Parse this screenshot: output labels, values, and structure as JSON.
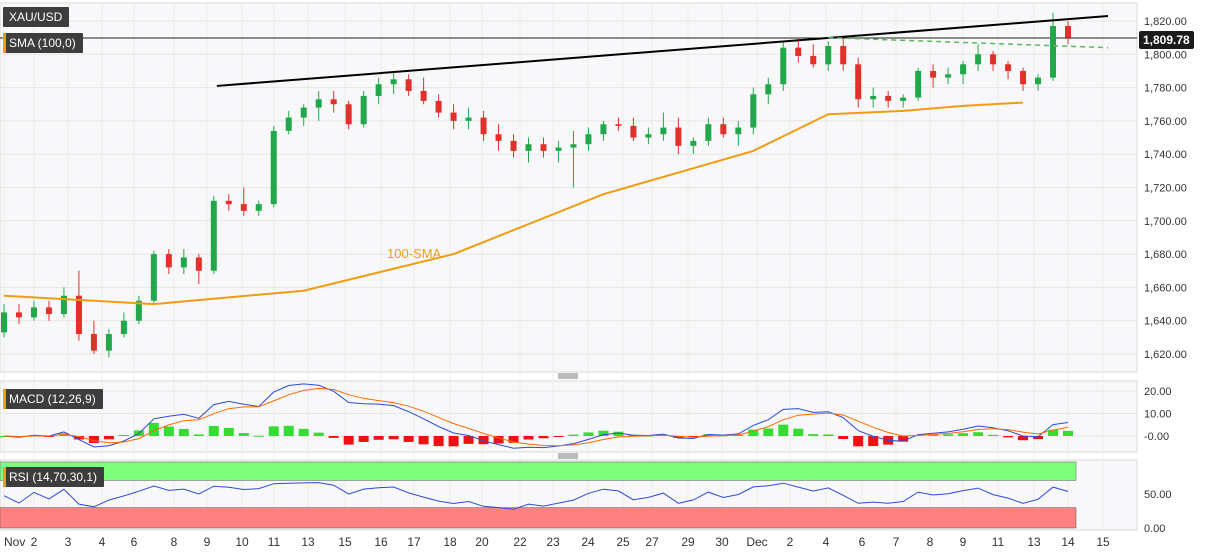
{
  "header": {
    "symbol": "XAU/USD",
    "indicator": "SMA (100,0)",
    "last_price": "1,809.78"
  },
  "colors": {
    "up": "#22a84a",
    "down": "#e0312b",
    "sma": "#f39c12",
    "trend": "#000000",
    "dashed": "#5cb85c",
    "macd": "#2e4bd4",
    "signal": "#ff6a00",
    "hist_pos": "#33dd33",
    "hist_neg": "#ee1111",
    "rsi_line": "#2e4bd4",
    "rsi_upper": "#7dff7d",
    "rsi_lower": "#ff8080"
  },
  "chart_data": [
    {
      "type": "candlestick",
      "series_name": "XAU/USD",
      "annotation": "100-SMA",
      "y_ticks": [
        "1,620.00",
        "1,640.00",
        "1,660.00",
        "1,680.00",
        "1,700.00",
        "1,720.00",
        "1,740.00",
        "1,760.00",
        "1,780.00",
        "1,800.00",
        "1,820.00"
      ],
      "ylim": [
        1610,
        1830
      ],
      "x_ticks": [
        "Nov",
        "2",
        "3",
        "4",
        "6",
        "8",
        "9",
        "10",
        "11",
        "13",
        "15",
        "16",
        "17",
        "18",
        "20",
        "22",
        "23",
        "24",
        "25",
        "27",
        "29",
        "30",
        "Dec",
        "2",
        "4",
        "6",
        "7",
        "8",
        "9",
        "11",
        "13",
        "14",
        "15"
      ],
      "candles": [
        [
          1633,
          1650,
          1630,
          1645
        ],
        [
          1645,
          1650,
          1638,
          1642
        ],
        [
          1642,
          1652,
          1640,
          1648
        ],
        [
          1648,
          1652,
          1640,
          1644
        ],
        [
          1644,
          1660,
          1642,
          1655
        ],
        [
          1655,
          1670,
          1628,
          1632
        ],
        [
          1632,
          1640,
          1620,
          1622
        ],
        [
          1622,
          1635,
          1618,
          1632
        ],
        [
          1632,
          1645,
          1630,
          1640
        ],
        [
          1640,
          1655,
          1638,
          1652
        ],
        [
          1652,
          1682,
          1650,
          1680
        ],
        [
          1680,
          1683,
          1668,
          1672
        ],
        [
          1672,
          1683,
          1668,
          1678
        ],
        [
          1678,
          1680,
          1662,
          1670
        ],
        [
          1670,
          1715,
          1668,
          1712
        ],
        [
          1712,
          1716,
          1706,
          1710
        ],
        [
          1710,
          1720,
          1703,
          1706
        ],
        [
          1706,
          1712,
          1703,
          1710
        ],
        [
          1710,
          1757,
          1708,
          1754
        ],
        [
          1754,
          1766,
          1752,
          1762
        ],
        [
          1762,
          1770,
          1757,
          1768
        ],
        [
          1768,
          1778,
          1760,
          1773
        ],
        [
          1773,
          1778,
          1765,
          1770
        ],
        [
          1770,
          1772,
          1755,
          1758
        ],
        [
          1758,
          1778,
          1756,
          1775
        ],
        [
          1775,
          1786,
          1770,
          1782
        ],
        [
          1782,
          1790,
          1776,
          1785
        ],
        [
          1785,
          1788,
          1775,
          1778
        ],
        [
          1778,
          1786,
          1770,
          1772
        ],
        [
          1772,
          1776,
          1762,
          1765
        ],
        [
          1765,
          1770,
          1755,
          1760
        ],
        [
          1760,
          1768,
          1755,
          1762
        ],
        [
          1762,
          1766,
          1748,
          1752
        ],
        [
          1752,
          1758,
          1742,
          1748
        ],
        [
          1748,
          1752,
          1738,
          1742
        ],
        [
          1742,
          1750,
          1735,
          1746
        ],
        [
          1746,
          1750,
          1738,
          1742
        ],
        [
          1742,
          1748,
          1735,
          1744
        ],
        [
          1744,
          1754,
          1720,
          1746
        ],
        [
          1746,
          1756,
          1742,
          1752
        ],
        [
          1752,
          1760,
          1748,
          1758
        ],
        [
          1758,
          1762,
          1754,
          1757
        ],
        [
          1757,
          1762,
          1748,
          1750
        ],
        [
          1750,
          1756,
          1746,
          1752
        ],
        [
          1752,
          1765,
          1748,
          1756
        ],
        [
          1756,
          1762,
          1740,
          1745
        ],
        [
          1745,
          1750,
          1740,
          1748
        ],
        [
          1748,
          1762,
          1745,
          1758
        ],
        [
          1758,
          1762,
          1750,
          1752
        ],
        [
          1752,
          1760,
          1745,
          1756
        ],
        [
          1756,
          1780,
          1752,
          1776
        ],
        [
          1776,
          1786,
          1770,
          1782
        ],
        [
          1782,
          1808,
          1778,
          1804
        ],
        [
          1804,
          1810,
          1795,
          1799
        ],
        [
          1799,
          1806,
          1792,
          1794
        ],
        [
          1794,
          1808,
          1790,
          1805
        ],
        [
          1805,
          1810,
          1790,
          1794
        ],
        [
          1794,
          1798,
          1768,
          1773
        ],
        [
          1773,
          1780,
          1768,
          1775
        ],
        [
          1775,
          1778,
          1768,
          1772
        ],
        [
          1772,
          1776,
          1768,
          1774
        ],
        [
          1774,
          1792,
          1772,
          1790
        ],
        [
          1790,
          1794,
          1780,
          1786
        ],
        [
          1786,
          1792,
          1782,
          1788
        ],
        [
          1788,
          1796,
          1782,
          1794
        ],
        [
          1794,
          1806,
          1790,
          1800
        ],
        [
          1800,
          1802,
          1790,
          1794
        ],
        [
          1794,
          1796,
          1785,
          1790
        ],
        [
          1790,
          1792,
          1778,
          1782
        ],
        [
          1782,
          1788,
          1778,
          1786
        ],
        [
          1786,
          1825,
          1784,
          1817
        ],
        [
          1817,
          1820,
          1806,
          1810
        ]
      ],
      "sma_100": [
        [
          0,
          1655
        ],
        [
          10,
          1650
        ],
        [
          20,
          1658
        ],
        [
          30,
          1680
        ],
        [
          40,
          1716
        ],
        [
          50,
          1742
        ],
        [
          55,
          1764
        ],
        [
          60,
          1766
        ],
        [
          64,
          1769
        ],
        [
          68,
          1771
        ]
      ]
    },
    {
      "type": "histogram+line",
      "series_name": "MACD (12,26,9)",
      "y_ticks": [
        "20.00",
        "10.00",
        "-0.00"
      ],
      "ylim": [
        -8,
        24
      ]
    },
    {
      "type": "line",
      "series_name": "RSI (14,70,30,1)",
      "y_ticks": [
        "50.00",
        "0.00"
      ],
      "ylim": [
        0,
        100
      ],
      "overbought": 70,
      "oversold": 30
    }
  ]
}
